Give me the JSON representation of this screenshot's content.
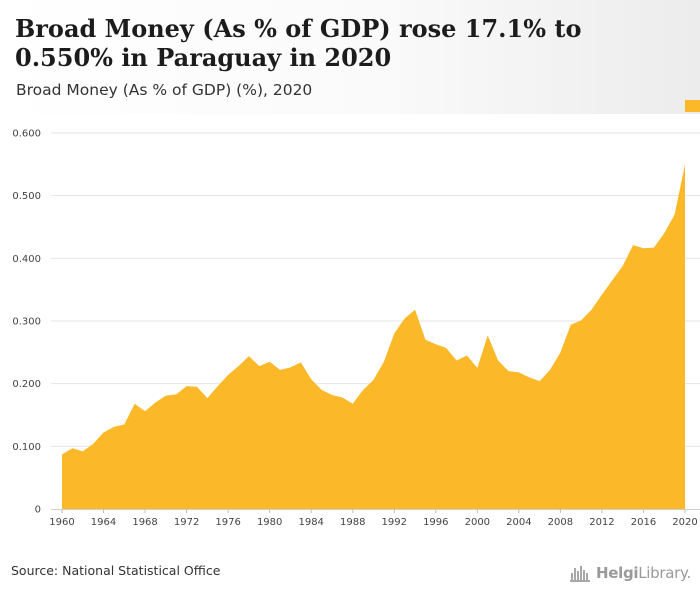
{
  "header": {
    "title": "Broad Money (As % of GDP) rose 17.1% to 0.550% in Paraguay in 2020",
    "subtitle": "Broad Money (As % of GDP) (%), 2020"
  },
  "footer": {
    "source": "Source: National Statistical Office",
    "logo_text_bold": "Helgi",
    "logo_text_rest": "Library."
  },
  "colors": {
    "area_fill": "#fbb829",
    "grid": "#e4e4e4"
  },
  "chart_data": {
    "type": "area",
    "title": "Broad Money (As % of GDP) rose 17.1% to 0.550% in Paraguay in 2020",
    "subtitle": "Broad Money (As % of GDP) (%), 2020",
    "xlabel": "",
    "ylabel": "",
    "xlim": [
      1960,
      2020
    ],
    "ylim": [
      0,
      0.6
    ],
    "y_ticks": [
      0,
      0.1,
      0.2,
      0.3,
      0.4,
      0.5,
      0.6
    ],
    "y_tick_labels": [
      "0",
      "0.100",
      "0.200",
      "0.300",
      "0.400",
      "0.500",
      "0.600"
    ],
    "x_ticks": [
      1960,
      1964,
      1968,
      1972,
      1976,
      1980,
      1984,
      1988,
      1992,
      1996,
      2000,
      2004,
      2008,
      2012,
      2016,
      2020
    ],
    "grid": true,
    "legend": "none",
    "series": [
      {
        "x": [
          1960,
          1961,
          1962,
          1963,
          1964,
          1965,
          1966,
          1967,
          1968,
          1969,
          1970,
          1971,
          1972,
          1973,
          1974,
          1975,
          1976,
          1977,
          1978,
          1979,
          1980,
          1981,
          1982,
          1983,
          1984,
          1985,
          1986,
          1987,
          1988,
          1989,
          1990,
          1991,
          1992,
          1993,
          1994,
          1995,
          1996,
          1997,
          1998,
          1999,
          2000,
          2001,
          2002,
          2003,
          2004,
          2005,
          2006,
          2007,
          2008,
          2009,
          2010,
          2011,
          2012,
          2013,
          2014,
          2015,
          2016,
          2017,
          2018,
          2019,
          2020
        ],
        "values": [
          0.087,
          0.097,
          0.092,
          0.104,
          0.122,
          0.131,
          0.135,
          0.168,
          0.156,
          0.17,
          0.181,
          0.183,
          0.196,
          0.195,
          0.177,
          0.196,
          0.214,
          0.228,
          0.244,
          0.228,
          0.235,
          0.222,
          0.226,
          0.234,
          0.207,
          0.19,
          0.182,
          0.178,
          0.168,
          0.19,
          0.206,
          0.235,
          0.28,
          0.304,
          0.318,
          0.27,
          0.263,
          0.257,
          0.237,
          0.245,
          0.225,
          0.277,
          0.237,
          0.22,
          0.218,
          0.21,
          0.204,
          0.222,
          0.25,
          0.294,
          0.301,
          0.318,
          0.342,
          0.365,
          0.388,
          0.421,
          0.416,
          0.417,
          0.44,
          0.47,
          0.55
        ]
      }
    ]
  }
}
